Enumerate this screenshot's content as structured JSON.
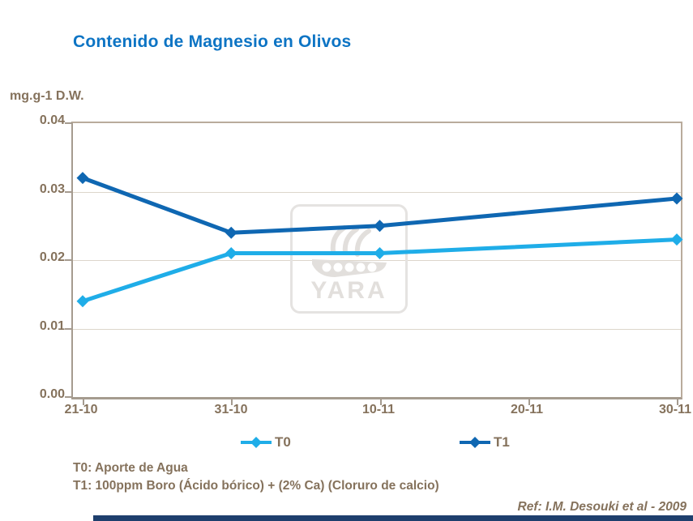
{
  "slide": {
    "title": "Contenido de Magnesio en Olivos",
    "footnote_t0": "T0: Aporte de Agua",
    "footnote_t1": "T1: 100ppm Boro (Ácido bórico) + (2% Ca) (Cloruro de calcio)",
    "reference": "Ref: I.M. Desouki et al - 2009",
    "watermark_text": "YARA"
  },
  "colors": {
    "title": "#0d74c4",
    "text_brown": "#85725c",
    "axis": "#a59b8f",
    "gridline": "#ddd6cb",
    "t0": "#1fade8",
    "t1": "#0f67b2",
    "watermark": "#e2dfdc",
    "footer_bar": "#1e3f6d"
  },
  "chart_data": {
    "type": "line",
    "title": "Contenido de Magnesio en Olivos",
    "xlabel": "",
    "ylabel": "mg.g-1 D.W.",
    "categories": [
      "21-10",
      "31-10",
      "10-11",
      "20-11",
      "30-11"
    ],
    "yticks": [
      "0.04",
      "0.03",
      "0.02",
      "0.01",
      "0.00"
    ],
    "ylim": [
      0,
      0.04
    ],
    "grid": true,
    "legend_position": "bottom",
    "marker": "diamond",
    "series": [
      {
        "name": "T0",
        "color": "#1fade8",
        "x": [
          "21-10",
          "31-10",
          "10-11",
          "30-11"
        ],
        "values": [
          0.014,
          0.021,
          0.021,
          0.023
        ]
      },
      {
        "name": "T1",
        "color": "#0f67b2",
        "x": [
          "21-10",
          "31-10",
          "10-11",
          "30-11"
        ],
        "values": [
          0.032,
          0.024,
          0.025,
          0.029
        ]
      }
    ]
  }
}
